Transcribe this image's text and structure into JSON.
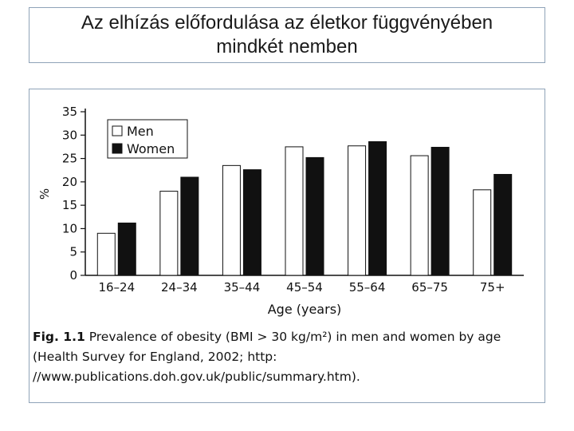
{
  "slide": {
    "title_line1": "Az elhízás előfordulása az életkor függvényében",
    "title_line2": "mindkét nemben"
  },
  "caption": {
    "label": "Fig. 1.1",
    "text": "Prevalence of obesity (BMI > 30 kg/m²) in men and women by age",
    "line2": "(Health Survey for England, 2002; http:",
    "line3": "//www.publications.doh.gov.uk/public/summary.htm)."
  },
  "colors": {
    "men": "#ffffff",
    "women": "#111111",
    "axis": "#111111"
  },
  "chart_data": {
    "type": "bar",
    "title": "",
    "xlabel": "Age (years)",
    "ylabel": "%",
    "ylim": [
      0,
      35
    ],
    "yticks": [
      0,
      5,
      10,
      15,
      20,
      25,
      30,
      35
    ],
    "categories": [
      "16–24",
      "24–34",
      "35–44",
      "45–54",
      "55–64",
      "65–75",
      "75+"
    ],
    "series": [
      {
        "name": "Men",
        "values": [
          9,
          18,
          23.5,
          27.5,
          27.7,
          25.6,
          18.3
        ]
      },
      {
        "name": "Women",
        "values": [
          11.2,
          21,
          22.6,
          25.2,
          28.6,
          27.4,
          21.6
        ]
      }
    ],
    "legend": "top-left"
  }
}
